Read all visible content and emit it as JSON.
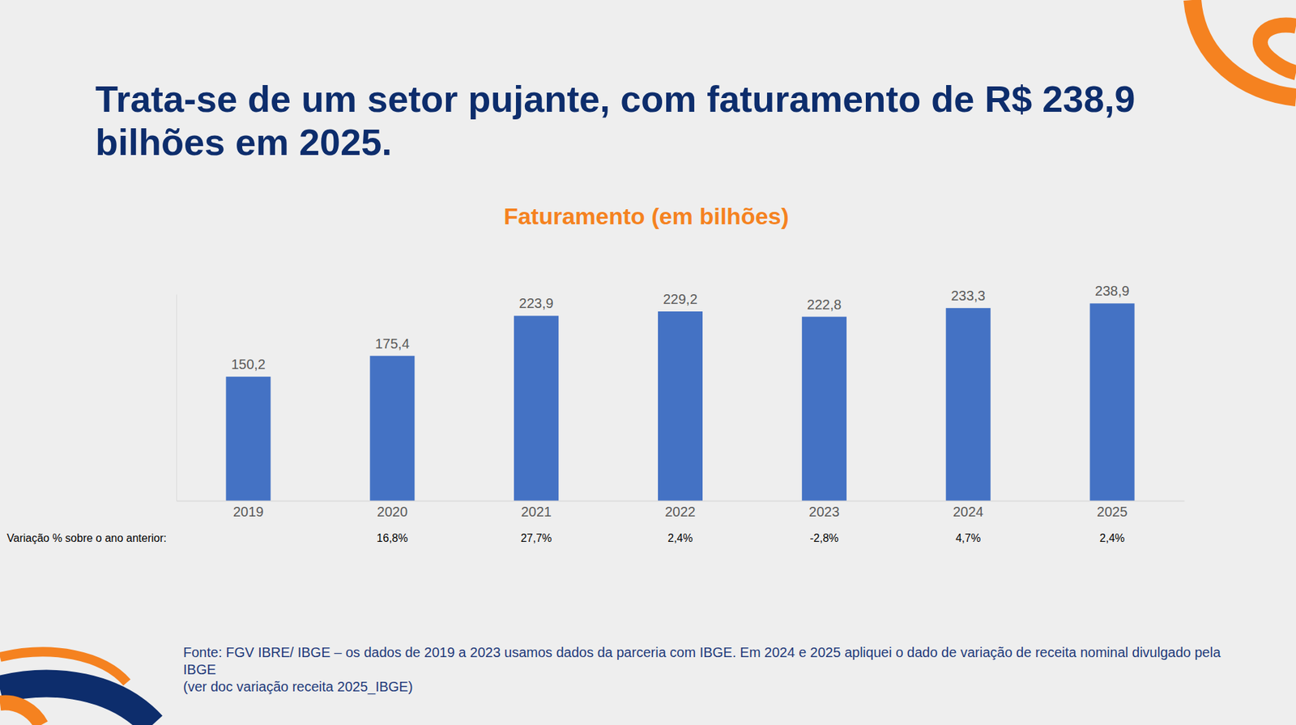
{
  "chart_data": {
    "type": "bar",
    "title": "Trata-se de um setor pujante, com faturamento de R$ 238,9 bilhões em 2025.",
    "subtitle": "Faturamento (em bilhões)",
    "categories": [
      "2019",
      "2020",
      "2021",
      "2022",
      "2023",
      "2024",
      "2025"
    ],
    "values": [
      150.2,
      175.4,
      223.9,
      229.2,
      222.8,
      233.3,
      238.9
    ],
    "value_labels": [
      "150,2",
      "175,4",
      "223,9",
      "229,2",
      "222,8",
      "233,3",
      "238,9"
    ],
    "data_labels": true,
    "color": "#4472c4",
    "ylim": [
      0,
      250
    ],
    "grid": false,
    "tick_labels": "x",
    "variation": {
      "label": "Variação % sobre o ano anterior:",
      "labels": [
        null,
        "16,8%",
        "27,7%",
        "2,4%",
        "-2,8%",
        "4,7%",
        "2,4%"
      ]
    },
    "source": [
      "Fonte: FGV IBRE/ IBGE – os dados de 2019 a 2023 usamos dados da parceria com IBGE. Em 2024 e 2025 apliquei o dado de variação de receita nominal divulgado pela IBGE",
      "(ver doc variação receita 2025_IBGE)"
    ]
  }
}
